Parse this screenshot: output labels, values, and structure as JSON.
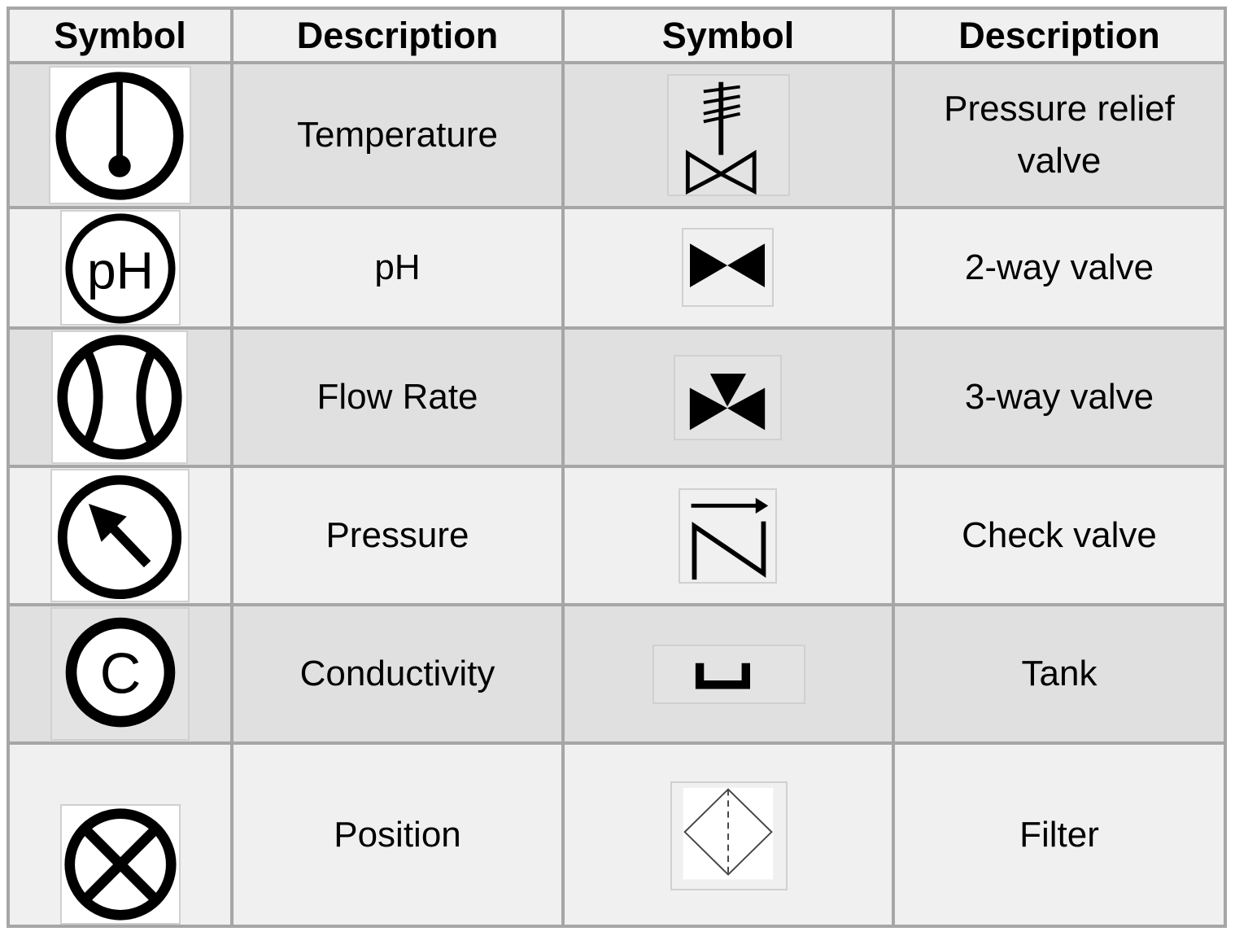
{
  "table": {
    "headers": [
      "Symbol",
      "Description",
      "Symbol",
      "Description"
    ],
    "rows": [
      {
        "left_icon": "temperature-icon",
        "left_label": "Temperature",
        "right_icon": "pressure-relief-valve-icon",
        "right_label_line1": "Pressure relief",
        "right_label_line2": "valve"
      },
      {
        "left_icon": "ph-icon",
        "left_label": "pH",
        "right_icon": "two-way-valve-icon",
        "right_label": "2-way valve"
      },
      {
        "left_icon": "flow-rate-icon",
        "left_label": "Flow Rate",
        "right_icon": "three-way-valve-icon",
        "right_label": "3-way valve"
      },
      {
        "left_icon": "pressure-icon",
        "left_label": "Pressure",
        "right_icon": "check-valve-icon",
        "right_label": "Check valve"
      },
      {
        "left_icon": "conductivity-icon",
        "left_label": "Conductivity",
        "right_icon": "tank-icon",
        "right_label": "Tank"
      },
      {
        "left_icon": "position-icon",
        "left_label": "Position",
        "right_icon": "filter-icon",
        "right_label": "Filter"
      }
    ],
    "icon_text": {
      "ph": "pH",
      "conductivity": "C"
    }
  },
  "colors": {
    "grid": "#a6a6a6",
    "row_light": "#f0f0f0",
    "row_dark": "#e0e0e0",
    "ink": "#000000"
  }
}
